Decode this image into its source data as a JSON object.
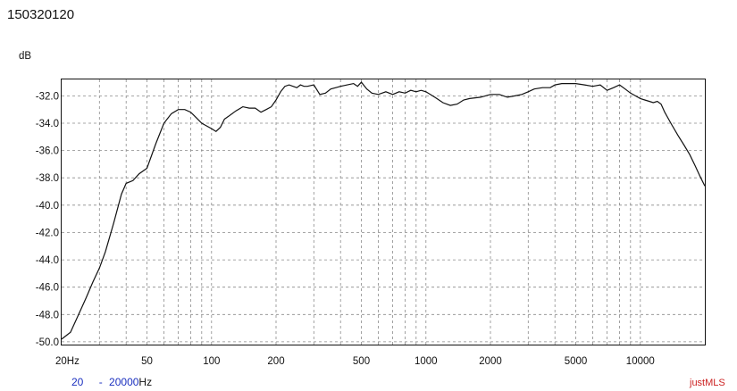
{
  "header": {
    "title": "150320120"
  },
  "footer": {
    "range_start": "20",
    "range_sep": "-",
    "range_end": "20000",
    "range_unit": "Hz",
    "brand": "justMLS"
  },
  "colors": {
    "curve": "#111111",
    "grid": "#8a8a8a",
    "range_text": "#1a2fbf",
    "brand": "#cc2222"
  },
  "chart_data": {
    "type": "line",
    "title": "",
    "ylabel": "dB",
    "xlabel": "",
    "x_scale": "log",
    "xlim": [
      20,
      20000
    ],
    "ylim": [
      -50.2,
      -30.8
    ],
    "grid": true,
    "x_tick_labels": [
      {
        "x": 20,
        "label": "20Hz"
      },
      {
        "x": 50,
        "label": "50"
      },
      {
        "x": 100,
        "label": "100"
      },
      {
        "x": 200,
        "label": "200"
      },
      {
        "x": 500,
        "label": "500"
      },
      {
        "x": 1000,
        "label": "1000"
      },
      {
        "x": 2000,
        "label": "2000"
      },
      {
        "x": 5000,
        "label": "5000"
      },
      {
        "x": 10000,
        "label": "10000"
      }
    ],
    "y_ticks": [
      -32,
      -34,
      -36,
      -38,
      -40,
      -42,
      -44,
      -46,
      -48,
      -50
    ],
    "y_tick_labels": [
      "-32.0",
      "-34.0",
      "-36.0",
      "-38.0",
      "-40.0",
      "-42.0",
      "-44.0",
      "-46.0",
      "-48.0",
      "-50.0"
    ],
    "series": [
      {
        "x": [
          20,
          22,
          24,
          26,
          28,
          30,
          32,
          35,
          38,
          40,
          43,
          46,
          50,
          55,
          60,
          65,
          70,
          75,
          80,
          85,
          90,
          95,
          100,
          105,
          110,
          115,
          120,
          130,
          140,
          150,
          160,
          170,
          180,
          190,
          200,
          210,
          220,
          230,
          240,
          250,
          260,
          270,
          280,
          300,
          320,
          340,
          360,
          380,
          400,
          430,
          460,
          480,
          500,
          530,
          560,
          600,
          650,
          700,
          750,
          800,
          850,
          900,
          950,
          1000,
          1100,
          1200,
          1300,
          1400,
          1500,
          1600,
          1800,
          2000,
          2200,
          2400,
          2600,
          2800,
          3000,
          3200,
          3500,
          3800,
          4000,
          4300,
          4600,
          5000,
          5500,
          6000,
          6500,
          7000,
          7500,
          8000,
          8500,
          9000,
          9500,
          10000,
          10500,
          11000,
          11500,
          12000,
          12500,
          13000,
          14000,
          15000,
          16000,
          17000,
          18000,
          19000,
          20000
        ],
        "y": [
          -49.8,
          -49.3,
          -48,
          -46.8,
          -45.6,
          -44.6,
          -43.4,
          -41.3,
          -39.2,
          -38.4,
          -38.2,
          -37.7,
          -37.3,
          -35.5,
          -34,
          -33.3,
          -33,
          -33,
          -33.2,
          -33.6,
          -34,
          -34.2,
          -34.4,
          -34.6,
          -34.3,
          -33.7,
          -33.5,
          -33.1,
          -32.8,
          -32.9,
          -32.9,
          -33.2,
          -33,
          -32.8,
          -32.3,
          -31.7,
          -31.3,
          -31.2,
          -31.3,
          -31.4,
          -31.2,
          -31.3,
          -31.3,
          -31.2,
          -31.9,
          -31.8,
          -31.5,
          -31.4,
          -31.3,
          -31.2,
          -31.1,
          -31.3,
          -31,
          -31.5,
          -31.8,
          -31.9,
          -31.7,
          -31.9,
          -31.7,
          -31.8,
          -31.6,
          -31.7,
          -31.6,
          -31.7,
          -32.1,
          -32.5,
          -32.7,
          -32.6,
          -32.3,
          -32.2,
          -32.1,
          -31.9,
          -31.9,
          -32.1,
          -32,
          -31.9,
          -31.7,
          -31.5,
          -31.4,
          -31.4,
          -31.2,
          -31.1,
          -31.1,
          -31.1,
          -31.2,
          -31.3,
          -31.2,
          -31.6,
          -31.4,
          -31.2,
          -31.5,
          -31.8,
          -32,
          -32.2,
          -32.3,
          -32.4,
          -32.5,
          -32.4,
          -32.6,
          -33.2,
          -34.1,
          -34.9,
          -35.6,
          -36.3,
          -37.1,
          -37.9,
          -38.6
        ]
      }
    ]
  }
}
